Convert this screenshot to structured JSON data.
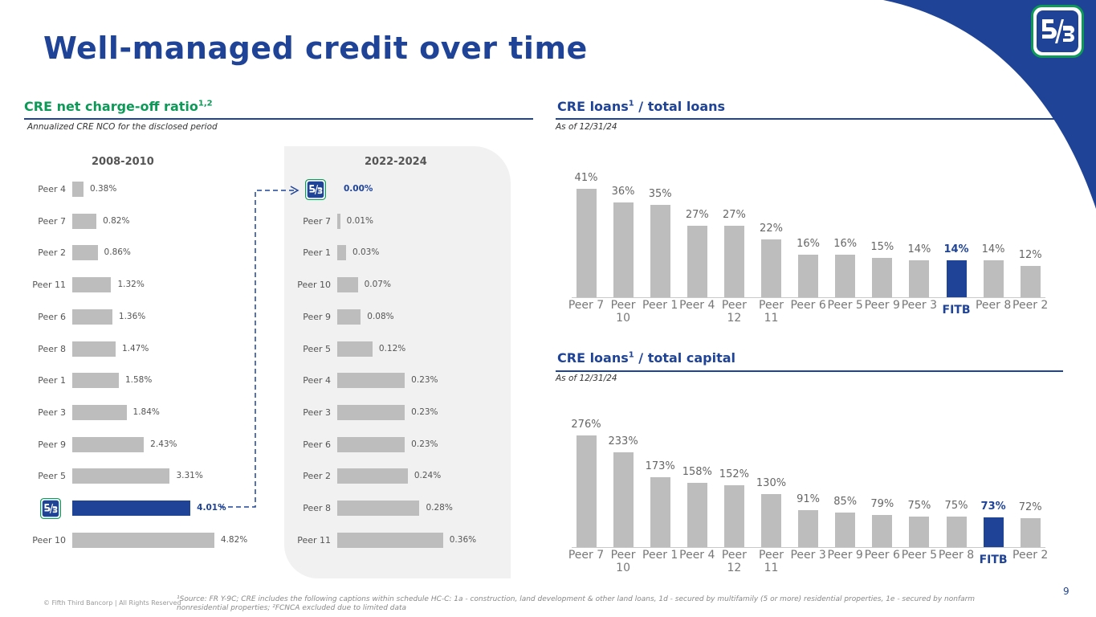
{
  "page": {
    "title": "Well-managed credit over time",
    "page_number": "9",
    "copyright": "© Fifth Third Bancorp | All Rights Reserved",
    "footnote": "¹Source: FR Y-9C; CRE includes the following captions within schedule HC-C: 1a - construction, land development & other land loans, 1d - secured by multifamily (5 or more) residential properties, 1e - secured by nonfarm nonresidential properties; ²FCNCA excluded due to limited data",
    "logo_icon": "fifth-third-logo"
  },
  "colors": {
    "brand_blue": "#1f4396",
    "accent_green": "#0d9a58",
    "bar_gray": "#bdbdbd"
  },
  "charts": {
    "nco": {
      "title": "CRE net charge-off ratio",
      "title_sup": "1,2",
      "subtitle": "Annualized CRE NCO for the disclosed period"
    },
    "loans": {
      "title": "CRE loans",
      "title_sup": "1",
      "title_rest": " / total loans",
      "subtitle": "As of 12/31/24"
    },
    "capital": {
      "title": "CRE loans",
      "title_sup": "1",
      "title_rest": " / total capital",
      "subtitle": "As of 12/31/24"
    }
  },
  "chart_data": [
    {
      "type": "bar",
      "orientation": "horizontal",
      "title": "2008-2010",
      "unit": "%",
      "categories": [
        "Peer 4",
        "Peer 7",
        "Peer 2",
        "Peer 11",
        "Peer 6",
        "Peer 8",
        "Peer 1",
        "Peer 3",
        "Peer 9",
        "Peer 5",
        "FITB",
        "Peer 10"
      ],
      "values": [
        0.38,
        0.82,
        0.86,
        1.32,
        1.36,
        1.47,
        1.58,
        1.84,
        2.43,
        3.31,
        4.01,
        4.82
      ],
      "value_labels": [
        "0.38%",
        "0.82%",
        "0.86%",
        "1.32%",
        "1.36%",
        "1.47%",
        "1.58%",
        "1.84%",
        "2.43%",
        "3.31%",
        "4.01%",
        "4.82%"
      ],
      "highlight": "FITB"
    },
    {
      "type": "bar",
      "orientation": "horizontal",
      "title": "2022-2024",
      "unit": "%",
      "categories": [
        "FITB",
        "Peer 7",
        "Peer 1",
        "Peer 10",
        "Peer 9",
        "Peer 5",
        "Peer 4",
        "Peer 3",
        "Peer 6",
        "Peer 2",
        "Peer 8",
        "Peer 11"
      ],
      "values": [
        0.0,
        0.01,
        0.03,
        0.07,
        0.08,
        0.12,
        0.23,
        0.23,
        0.23,
        0.24,
        0.28,
        0.36
      ],
      "value_labels": [
        "0.00%",
        "0.01%",
        "0.03%",
        "0.07%",
        "0.08%",
        "0.12%",
        "0.23%",
        "0.23%",
        "0.23%",
        "0.24%",
        "0.28%",
        "0.36%"
      ],
      "highlight": "FITB"
    },
    {
      "type": "bar",
      "title": "CRE loans / total loans",
      "unit": "%",
      "categories": [
        "Peer 7",
        "Peer 10",
        "Peer 1",
        "Peer 4",
        "Peer 12",
        "Peer 11",
        "Peer 6",
        "Peer 5",
        "Peer 9",
        "Peer 3",
        "FITB",
        "Peer 8",
        "Peer 2"
      ],
      "values": [
        41,
        36,
        35,
        27,
        27,
        22,
        16,
        16,
        15,
        14,
        14,
        14,
        12
      ],
      "value_labels": [
        "41%",
        "36%",
        "35%",
        "27%",
        "27%",
        "22%",
        "16%",
        "16%",
        "15%",
        "14%",
        "14%",
        "14%",
        "12%"
      ],
      "highlight": "FITB"
    },
    {
      "type": "bar",
      "title": "CRE loans / total capital",
      "unit": "%",
      "categories": [
        "Peer 7",
        "Peer 10",
        "Peer 1",
        "Peer 4",
        "Peer 12",
        "Peer 11",
        "Peer 3",
        "Peer 9",
        "Peer 6",
        "Peer 5",
        "Peer 8",
        "FITB",
        "Peer 2"
      ],
      "values": [
        276,
        233,
        173,
        158,
        152,
        130,
        91,
        85,
        79,
        75,
        75,
        73,
        72
      ],
      "value_labels": [
        "276%",
        "233%",
        "173%",
        "158%",
        "152%",
        "130%",
        "91%",
        "85%",
        "79%",
        "75%",
        "75%",
        "73%",
        "72%"
      ],
      "highlight": "FITB"
    }
  ]
}
